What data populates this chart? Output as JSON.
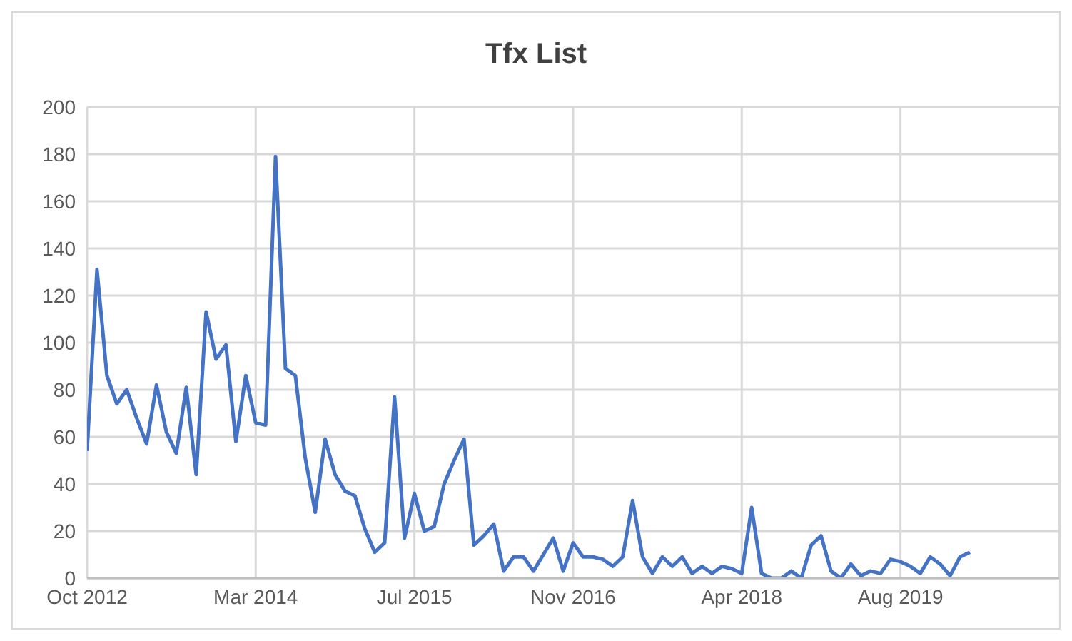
{
  "chart_data": {
    "type": "line",
    "title": "Tfx List",
    "x": [
      "2012-10",
      "2012-11",
      "2012-12",
      "2013-01",
      "2013-02",
      "2013-03",
      "2013-04",
      "2013-05",
      "2013-06",
      "2013-07",
      "2013-08",
      "2013-09",
      "2013-10",
      "2013-11",
      "2013-12",
      "2014-01",
      "2014-02",
      "2014-03",
      "2014-04",
      "2014-05",
      "2014-06",
      "2014-07",
      "2014-08",
      "2014-09",
      "2014-10",
      "2014-11",
      "2014-12",
      "2015-01",
      "2015-02",
      "2015-03",
      "2015-04",
      "2015-05",
      "2015-06",
      "2015-07",
      "2015-08",
      "2015-09",
      "2015-10",
      "2015-11",
      "2015-12",
      "2016-01",
      "2016-02",
      "2016-03",
      "2016-04",
      "2016-05",
      "2016-06",
      "2016-07",
      "2016-08",
      "2016-09",
      "2016-10",
      "2016-11",
      "2016-12",
      "2017-01",
      "2017-02",
      "2017-03",
      "2017-04",
      "2017-05",
      "2017-06",
      "2017-07",
      "2017-08",
      "2017-09",
      "2017-10",
      "2017-11",
      "2017-12",
      "2018-01",
      "2018-02",
      "2018-03",
      "2018-04",
      "2018-05",
      "2018-06",
      "2018-07",
      "2018-08",
      "2018-09",
      "2018-10",
      "2018-11",
      "2018-12",
      "2019-01",
      "2019-02",
      "2019-03",
      "2019-04",
      "2019-05",
      "2019-06",
      "2019-07",
      "2019-08",
      "2019-09",
      "2019-10",
      "2019-11",
      "2019-12",
      "2020-01",
      "2020-02",
      "2020-03"
    ],
    "series": [
      {
        "color": "#4472c4",
        "values": [
          54,
          131,
          86,
          74,
          80,
          68,
          57,
          82,
          62,
          53,
          81,
          44,
          113,
          93,
          99,
          58,
          86,
          66,
          65,
          179,
          89,
          86,
          51,
          28,
          59,
          44,
          37,
          35,
          21,
          11,
          15,
          77,
          17,
          36,
          20,
          22,
          40,
          50,
          59,
          14,
          18,
          23,
          3,
          9,
          9,
          3,
          10,
          17,
          3,
          15,
          9,
          9,
          8,
          5,
          9,
          33,
          9,
          2,
          9,
          5,
          9,
          2,
          5,
          2,
          5,
          4,
          2,
          30,
          2,
          0,
          0,
          3,
          0,
          14,
          18,
          3,
          0,
          6,
          1,
          3,
          2,
          8,
          7,
          5,
          2,
          9,
          6,
          1,
          9,
          11
        ]
      }
    ],
    "xlim": [
      "2012-10",
      "2020-12"
    ],
    "xticks": [
      {
        "value": "2012-10",
        "label": "Oct 2012"
      },
      {
        "value": "2014-03",
        "label": "Mar 2014"
      },
      {
        "value": "2015-07",
        "label": "Jul 2015"
      },
      {
        "value": "2016-11",
        "label": "Nov 2016"
      },
      {
        "value": "2018-04",
        "label": "Apr 2018"
      },
      {
        "value": "2019-08",
        "label": "Aug 2019"
      }
    ],
    "ylim": [
      0,
      200
    ],
    "yticks": [
      0,
      20,
      40,
      60,
      80,
      100,
      120,
      140,
      160,
      180,
      200
    ],
    "grid": true,
    "legend": false,
    "marker": "none",
    "line_style": "solid"
  }
}
